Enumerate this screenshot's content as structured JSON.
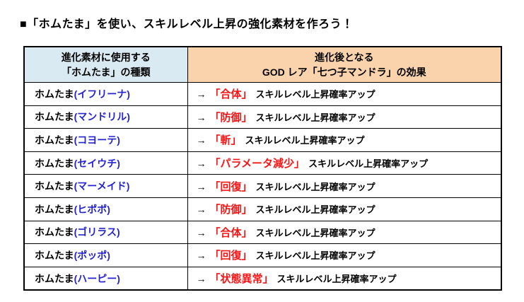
{
  "page": {
    "title": "■「ホムたま」を使い、スキルレベル上昇の強化素材を作ろう！"
  },
  "colors": {
    "material_header_bg": "#d9eaf2",
    "effect_header_bg": "#fad3ad",
    "material_name_blue": "#2323d3",
    "skill_red": "#f81414",
    "table_border": "#000000",
    "page_bg": "#ffffff"
  },
  "table": {
    "header": {
      "material_col_line1": "進化素材に使用する",
      "material_col_line2": "「ホムたま」の種類",
      "effect_col_line1": "進化後となる",
      "effect_col_line2": "GOD レア「七つ子マンドラ」の効果"
    },
    "rows": [
      {
        "material_prefix": "ホムたま",
        "material_name": "(イフリーナ)",
        "arrow": "→",
        "skill": "「合体」",
        "effect": "スキルレベル上昇確率アップ"
      },
      {
        "material_prefix": "ホムたま",
        "material_name": "(マンドリル)",
        "arrow": "→",
        "skill": "「防御」",
        "effect": "スキルレベル上昇確率アップ"
      },
      {
        "material_prefix": "ホムたま",
        "material_name": "(コヨーテ)",
        "arrow": "→",
        "skill": "「斬」",
        "effect": "スキルレベル上昇確率アップ"
      },
      {
        "material_prefix": "ホムたま",
        "material_name": "(セイウチ)",
        "arrow": "→",
        "skill": "「パラメータ減少」",
        "effect": "スキルレベル上昇確率アップ"
      },
      {
        "material_prefix": "ホムたま",
        "material_name": "(マーメイド)",
        "arrow": "→",
        "skill": "「回復」",
        "effect": "スキルレベル上昇確率アップ"
      },
      {
        "material_prefix": "ホムたま",
        "material_name": "(ヒポポ)",
        "arrow": "→",
        "skill": "「防御」",
        "effect": "スキルレベル上昇確率アップ"
      },
      {
        "material_prefix": "ホムたま",
        "material_name": "(ゴリラス)",
        "arrow": "→",
        "skill": "「合体」",
        "effect": "スキルレベル上昇確率アップ"
      },
      {
        "material_prefix": "ホムたま",
        "material_name": "(ポッポ)",
        "arrow": "→",
        "skill": "「回復」",
        "effect": "スキルレベル上昇確率アップ"
      },
      {
        "material_prefix": "ホムたま",
        "material_name": "(ハーピー)",
        "arrow": "→",
        "skill": "「状態異常」",
        "effect": "スキルレベル上昇確率アップ"
      }
    ]
  }
}
